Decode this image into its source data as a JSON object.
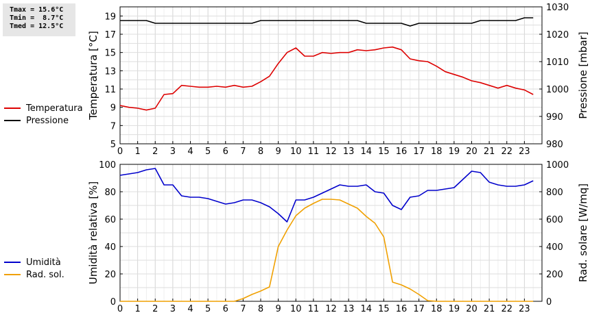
{
  "stats": {
    "tmax": "Tmax = 15.6°C",
    "tmin": "Tmin =  8.7°C",
    "tmed": "Tmed = 12.5°C"
  },
  "chart_data": [
    {
      "type": "line",
      "x": [
        0,
        0.5,
        1,
        1.5,
        2,
        2.5,
        3,
        3.5,
        4,
        4.5,
        5,
        5.5,
        6,
        6.5,
        7,
        7.5,
        8,
        8.5,
        9,
        9.5,
        10,
        10.5,
        11,
        11.5,
        12,
        12.5,
        13,
        13.5,
        14,
        14.5,
        15,
        15.5,
        16,
        16.5,
        17,
        17.5,
        18,
        18.5,
        19,
        19.5,
        20,
        20.5,
        21,
        21.5,
        22,
        22.5,
        23,
        23.5
      ],
      "xlim": [
        0,
        24
      ],
      "xticks": [
        0,
        1,
        2,
        3,
        4,
        5,
        6,
        7,
        8,
        9,
        10,
        11,
        12,
        13,
        14,
        15,
        16,
        17,
        18,
        19,
        20,
        21,
        22,
        23
      ],
      "ylabel": "Temperatura [°C]",
      "ylim": [
        5,
        20
      ],
      "yticks": [
        5,
        7,
        9,
        11,
        13,
        15,
        17,
        19
      ],
      "y2label": "Pressione [mbar]",
      "y2lim": [
        980,
        1030
      ],
      "y2ticks": [
        980,
        990,
        1000,
        1010,
        1020,
        1030
      ],
      "grid": true,
      "legend_position": "left",
      "series": [
        {
          "name": "Temperatura",
          "axis": "left",
          "color": "#dd0000",
          "values": [
            9.2,
            9.0,
            8.9,
            8.7,
            8.9,
            10.4,
            10.5,
            11.4,
            11.3,
            11.2,
            11.2,
            11.3,
            11.2,
            11.4,
            11.2,
            11.3,
            11.8,
            12.4,
            13.8,
            15.0,
            15.5,
            14.6,
            14.6,
            15.0,
            14.9,
            15.0,
            15.0,
            15.3,
            15.2,
            15.3,
            15.5,
            15.6,
            15.3,
            14.3,
            14.1,
            14.0,
            13.5,
            12.9,
            12.6,
            12.3,
            11.9,
            11.7,
            11.4,
            11.1,
            11.4,
            11.1,
            10.9,
            10.4
          ]
        },
        {
          "name": "Pressione",
          "axis": "right",
          "color": "#000000",
          "values": [
            1025,
            1025,
            1025,
            1025,
            1024,
            1024,
            1024,
            1024,
            1024,
            1024,
            1024,
            1024,
            1024,
            1024,
            1024,
            1024,
            1025,
            1025,
            1025,
            1025,
            1025,
            1025,
            1025,
            1025,
            1025,
            1025,
            1025,
            1025,
            1024,
            1024,
            1024,
            1024,
            1024,
            1023,
            1024,
            1024,
            1024,
            1024,
            1024,
            1024,
            1024,
            1025,
            1025,
            1025,
            1025,
            1025,
            1026,
            1026
          ]
        }
      ]
    },
    {
      "type": "line",
      "x": [
        0,
        0.5,
        1,
        1.5,
        2,
        2.5,
        3,
        3.5,
        4,
        4.5,
        5,
        5.5,
        6,
        6.5,
        7,
        7.5,
        8,
        8.5,
        9,
        9.5,
        10,
        10.5,
        11,
        11.5,
        12,
        12.5,
        13,
        13.5,
        14,
        14.5,
        15,
        15.5,
        16,
        16.5,
        17,
        17.5,
        18,
        18.5,
        19,
        19.5,
        20,
        20.5,
        21,
        21.5,
        22,
        22.5,
        23,
        23.5
      ],
      "xlim": [
        0,
        24
      ],
      "xticks": [
        0,
        1,
        2,
        3,
        4,
        5,
        6,
        7,
        8,
        9,
        10,
        11,
        12,
        13,
        14,
        15,
        16,
        17,
        18,
        19,
        20,
        21,
        22,
        23
      ],
      "ylabel": "Umidità relativa [%]",
      "ylim": [
        0,
        100
      ],
      "yticks": [
        0,
        20,
        40,
        60,
        80,
        100
      ],
      "y2label": "Rad. solare [W/mq]",
      "y2lim": [
        0,
        1000
      ],
      "y2ticks": [
        0,
        200,
        400,
        600,
        800,
        1000
      ],
      "grid": true,
      "legend_position": "left",
      "series": [
        {
          "name": "Umidità",
          "axis": "left",
          "color": "#0000cc",
          "values": [
            92,
            93,
            94,
            96,
            97,
            85,
            85,
            77,
            76,
            76,
            75,
            73,
            71,
            72,
            74,
            74,
            72,
            69,
            64,
            58,
            74,
            74,
            76,
            79,
            82,
            85,
            84,
            84,
            85,
            80,
            79,
            70,
            67,
            76,
            77,
            81,
            81,
            82,
            83,
            89,
            95,
            94,
            87,
            85,
            84,
            84,
            85,
            88
          ]
        },
        {
          "name": "Rad. sol.",
          "axis": "right",
          "color": "#f0a000",
          "values": [
            0,
            0,
            0,
            0,
            0,
            0,
            0,
            0,
            0,
            0,
            0,
            0,
            0,
            0,
            20,
            50,
            75,
            105,
            400,
            520,
            625,
            680,
            715,
            745,
            745,
            740,
            710,
            680,
            620,
            570,
            470,
            140,
            120,
            90,
            50,
            5,
            0,
            0,
            0,
            0,
            0,
            0,
            0,
            0,
            0,
            0,
            0,
            0
          ]
        }
      ]
    }
  ]
}
